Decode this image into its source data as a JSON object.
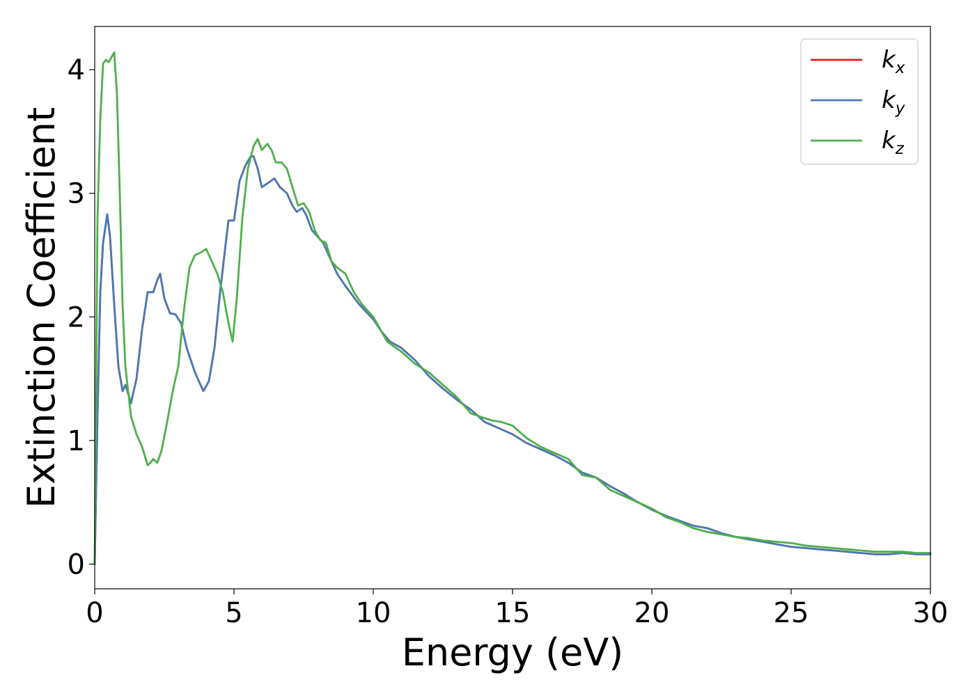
{
  "chart_data": {
    "type": "line",
    "title": "",
    "xlabel": "Energy (eV)",
    "ylabel": "Extinction Coefficient",
    "xlim": [
      0,
      30
    ],
    "ylim": [
      -0.2,
      4.35
    ],
    "xticks": [
      0,
      5,
      10,
      15,
      20,
      25,
      30
    ],
    "yticks": [
      0,
      1,
      2,
      3,
      4
    ],
    "grid": false,
    "legend_position": "top-right",
    "series": [
      {
        "name": "k_x",
        "legend_base": "k",
        "legend_sub": "x",
        "color": "#e41a1c",
        "x": [
          0,
          0.1,
          0.2,
          0.3,
          0.45,
          0.55,
          0.7,
          0.85,
          1.0,
          1.1,
          1.2,
          1.3,
          1.5,
          1.7,
          1.9,
          2.1,
          2.25,
          2.35,
          2.5,
          2.7,
          2.9,
          3.1,
          3.3,
          3.6,
          3.9,
          4.1,
          4.3,
          4.5,
          4.8,
          5.0,
          5.2,
          5.4,
          5.6,
          5.7,
          5.85,
          6.0,
          6.2,
          6.45,
          6.65,
          6.9,
          7.1,
          7.25,
          7.45,
          7.6,
          7.8,
          8.0,
          8.2,
          8.5,
          8.7,
          9.0,
          9.5,
          10.0,
          10.3,
          10.6,
          11.0,
          11.5,
          12.0,
          12.5,
          13.0,
          13.5,
          14.0,
          14.5,
          15.0,
          15.5,
          16.0,
          16.5,
          17.0,
          17.5,
          18.0,
          18.5,
          19.0,
          19.5,
          20.0,
          20.5,
          21.0,
          21.5,
          22.0,
          22.5,
          23.0,
          23.5,
          24.0,
          24.5,
          25.0,
          25.5,
          26.0,
          26.5,
          27.0,
          27.5,
          28.0,
          28.5,
          29.0,
          29.5,
          30.0
        ],
        "y": [
          0.0,
          1.2,
          2.2,
          2.6,
          2.83,
          2.65,
          2.1,
          1.6,
          1.4,
          1.45,
          1.38,
          1.3,
          1.5,
          1.9,
          2.2,
          2.2,
          2.3,
          2.35,
          2.15,
          2.03,
          2.02,
          1.95,
          1.75,
          1.55,
          1.4,
          1.48,
          1.75,
          2.2,
          2.78,
          2.78,
          3.1,
          3.22,
          3.3,
          3.3,
          3.2,
          3.05,
          3.08,
          3.12,
          3.05,
          3.0,
          2.9,
          2.85,
          2.88,
          2.82,
          2.7,
          2.65,
          2.6,
          2.45,
          2.35,
          2.25,
          2.1,
          1.98,
          1.88,
          1.8,
          1.75,
          1.65,
          1.52,
          1.42,
          1.33,
          1.25,
          1.15,
          1.1,
          1.05,
          0.98,
          0.93,
          0.88,
          0.82,
          0.74,
          0.7,
          0.63,
          0.57,
          0.5,
          0.44,
          0.39,
          0.35,
          0.31,
          0.29,
          0.25,
          0.22,
          0.2,
          0.18,
          0.16,
          0.14,
          0.13,
          0.12,
          0.11,
          0.1,
          0.09,
          0.08,
          0.08,
          0.09,
          0.08,
          0.08
        ]
      },
      {
        "name": "k_y",
        "legend_base": "k",
        "legend_sub": "y",
        "color": "#4a7ab5",
        "x": [
          0,
          0.1,
          0.2,
          0.3,
          0.45,
          0.55,
          0.7,
          0.85,
          1.0,
          1.1,
          1.2,
          1.3,
          1.5,
          1.7,
          1.9,
          2.1,
          2.25,
          2.35,
          2.5,
          2.7,
          2.9,
          3.1,
          3.3,
          3.6,
          3.9,
          4.1,
          4.3,
          4.5,
          4.8,
          5.0,
          5.2,
          5.4,
          5.6,
          5.7,
          5.85,
          6.0,
          6.2,
          6.45,
          6.65,
          6.9,
          7.1,
          7.25,
          7.45,
          7.6,
          7.8,
          8.0,
          8.2,
          8.5,
          8.7,
          9.0,
          9.5,
          10.0,
          10.3,
          10.6,
          11.0,
          11.5,
          12.0,
          12.5,
          13.0,
          13.5,
          14.0,
          14.5,
          15.0,
          15.5,
          16.0,
          16.5,
          17.0,
          17.5,
          18.0,
          18.5,
          19.0,
          19.5,
          20.0,
          20.5,
          21.0,
          21.5,
          22.0,
          22.5,
          23.0,
          23.5,
          24.0,
          24.5,
          25.0,
          25.5,
          26.0,
          26.5,
          27.0,
          27.5,
          28.0,
          28.5,
          29.0,
          29.5,
          30.0
        ],
        "y": [
          0.0,
          1.2,
          2.2,
          2.6,
          2.83,
          2.65,
          2.1,
          1.6,
          1.4,
          1.45,
          1.38,
          1.3,
          1.5,
          1.9,
          2.2,
          2.2,
          2.3,
          2.35,
          2.15,
          2.03,
          2.02,
          1.95,
          1.75,
          1.55,
          1.4,
          1.48,
          1.75,
          2.2,
          2.78,
          2.78,
          3.1,
          3.22,
          3.3,
          3.3,
          3.2,
          3.05,
          3.08,
          3.12,
          3.05,
          3.0,
          2.9,
          2.85,
          2.88,
          2.82,
          2.7,
          2.65,
          2.6,
          2.45,
          2.35,
          2.25,
          2.1,
          1.98,
          1.88,
          1.8,
          1.75,
          1.65,
          1.52,
          1.42,
          1.33,
          1.25,
          1.15,
          1.1,
          1.05,
          0.98,
          0.93,
          0.88,
          0.82,
          0.74,
          0.7,
          0.63,
          0.57,
          0.5,
          0.44,
          0.39,
          0.35,
          0.31,
          0.29,
          0.25,
          0.22,
          0.2,
          0.18,
          0.16,
          0.14,
          0.13,
          0.12,
          0.11,
          0.1,
          0.09,
          0.08,
          0.08,
          0.09,
          0.08,
          0.08
        ]
      },
      {
        "name": "k_z",
        "legend_base": "k",
        "legend_sub": "z",
        "color": "#4daf4a",
        "x": [
          0,
          0.1,
          0.2,
          0.3,
          0.4,
          0.5,
          0.6,
          0.7,
          0.8,
          0.9,
          1.0,
          1.1,
          1.3,
          1.5,
          1.7,
          1.9,
          2.0,
          2.1,
          2.25,
          2.4,
          2.6,
          2.8,
          3.0,
          3.2,
          3.4,
          3.6,
          3.8,
          4.0,
          4.2,
          4.4,
          4.6,
          4.8,
          4.95,
          5.1,
          5.3,
          5.5,
          5.7,
          5.85,
          6.0,
          6.2,
          6.35,
          6.5,
          6.7,
          6.9,
          7.1,
          7.3,
          7.5,
          7.7,
          7.9,
          8.1,
          8.3,
          8.5,
          8.7,
          9.0,
          9.3,
          9.6,
          10.0,
          10.5,
          11.0,
          11.5,
          12.0,
          12.5,
          13.0,
          13.5,
          14.0,
          14.3,
          14.6,
          15.0,
          15.5,
          16.0,
          16.5,
          17.0,
          17.5,
          18.0,
          18.5,
          19.0,
          19.5,
          20.0,
          20.5,
          21.0,
          21.5,
          22.0,
          22.5,
          23.0,
          23.5,
          24.0,
          24.5,
          25.0,
          25.5,
          26.0,
          26.5,
          27.0,
          27.5,
          28.0,
          28.5,
          29.0,
          29.5,
          30.0
        ],
        "y": [
          0.0,
          2.8,
          3.6,
          4.05,
          4.08,
          4.06,
          4.1,
          4.14,
          3.8,
          3.0,
          2.1,
          1.6,
          1.2,
          1.05,
          0.95,
          0.8,
          0.82,
          0.85,
          0.82,
          0.92,
          1.15,
          1.4,
          1.6,
          2.05,
          2.4,
          2.5,
          2.52,
          2.55,
          2.45,
          2.35,
          2.2,
          1.95,
          1.8,
          2.15,
          2.8,
          3.2,
          3.38,
          3.44,
          3.35,
          3.4,
          3.35,
          3.25,
          3.25,
          3.2,
          3.05,
          2.9,
          2.92,
          2.85,
          2.7,
          2.62,
          2.6,
          2.45,
          2.4,
          2.35,
          2.2,
          2.1,
          2.0,
          1.8,
          1.72,
          1.62,
          1.55,
          1.45,
          1.35,
          1.22,
          1.18,
          1.16,
          1.15,
          1.12,
          1.02,
          0.95,
          0.9,
          0.85,
          0.72,
          0.7,
          0.6,
          0.55,
          0.5,
          0.45,
          0.38,
          0.34,
          0.29,
          0.26,
          0.24,
          0.22,
          0.21,
          0.19,
          0.18,
          0.17,
          0.15,
          0.14,
          0.13,
          0.12,
          0.11,
          0.1,
          0.1,
          0.1,
          0.09,
          0.09
        ]
      }
    ]
  }
}
